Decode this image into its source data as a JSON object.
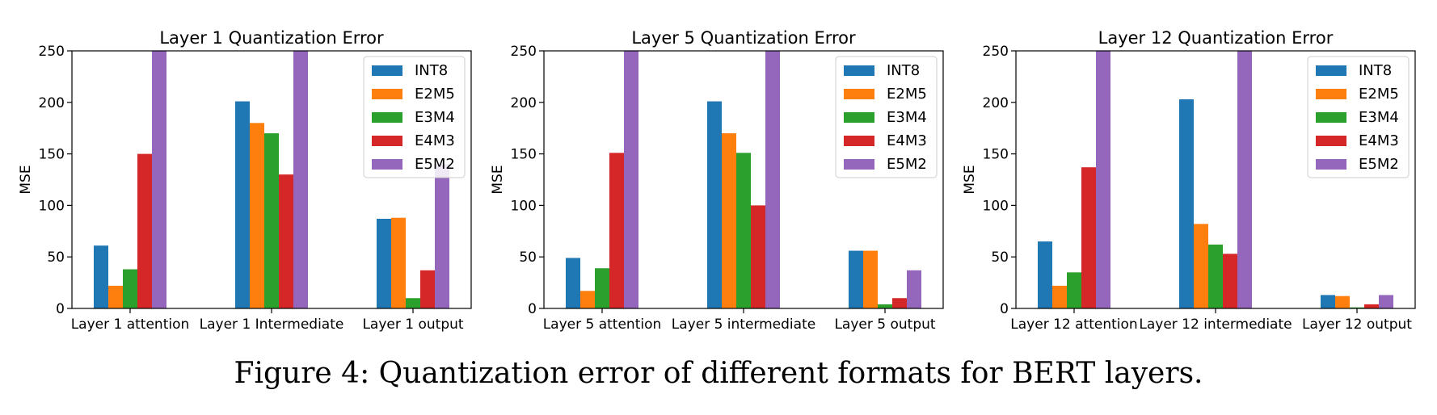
{
  "caption": "Figure 4: Quantization error of different formats for BERT layers.",
  "colors": {
    "INT8": "#1f77b4",
    "E2M5": "#ff7f0e",
    "E3M4": "#2ca02c",
    "E4M3": "#d62728",
    "E5M2": "#9467bd"
  },
  "chart_data": [
    {
      "type": "bar",
      "title": "Layer 1 Quantization Error",
      "ylabel": "MSE",
      "ylim": [
        0,
        250
      ],
      "yticks": [
        0,
        50,
        100,
        150,
        200,
        250
      ],
      "legend_position": "top-right",
      "categories": [
        "Layer 1 attention",
        "Layer 1 Intermediate",
        "Layer 1 output"
      ],
      "series": [
        {
          "name": "INT8",
          "values": [
            61,
            201,
            87
          ]
        },
        {
          "name": "E2M5",
          "values": [
            22,
            180,
            88
          ]
        },
        {
          "name": "E3M4",
          "values": [
            38,
            170,
            10
          ]
        },
        {
          "name": "E4M3",
          "values": [
            150,
            130,
            37
          ]
        },
        {
          "name": "E5M2",
          "values": [
            250,
            250,
            140
          ]
        }
      ]
    },
    {
      "type": "bar",
      "title": "Layer 5 Quantization Error",
      "ylabel": "MSE",
      "ylim": [
        0,
        250
      ],
      "yticks": [
        0,
        50,
        100,
        150,
        200,
        250
      ],
      "legend_position": "top-right",
      "categories": [
        "Layer 5 attention",
        "Layer 5 intermediate",
        "Layer 5 output"
      ],
      "series": [
        {
          "name": "INT8",
          "values": [
            49,
            201,
            56
          ]
        },
        {
          "name": "E2M5",
          "values": [
            17,
            170,
            56
          ]
        },
        {
          "name": "E3M4",
          "values": [
            39,
            151,
            4
          ]
        },
        {
          "name": "E4M3",
          "values": [
            151,
            100,
            10
          ]
        },
        {
          "name": "E5M2",
          "values": [
            250,
            250,
            37
          ]
        }
      ]
    },
    {
      "type": "bar",
      "title": "Layer 12 Quantization Error",
      "ylabel": "MSE",
      "ylim": [
        0,
        250
      ],
      "yticks": [
        0,
        50,
        100,
        150,
        200,
        250
      ],
      "legend_position": "top-right",
      "categories": [
        "Layer 12 attention",
        "Layer 12 intermediate",
        "Layer 12 output"
      ],
      "series": [
        {
          "name": "INT8",
          "values": [
            65,
            203,
            13
          ]
        },
        {
          "name": "E2M5",
          "values": [
            22,
            82,
            12
          ]
        },
        {
          "name": "E3M4",
          "values": [
            35,
            62,
            1
          ]
        },
        {
          "name": "E4M3",
          "values": [
            137,
            53,
            4
          ]
        },
        {
          "name": "E5M2",
          "values": [
            250,
            250,
            13
          ]
        }
      ]
    }
  ]
}
